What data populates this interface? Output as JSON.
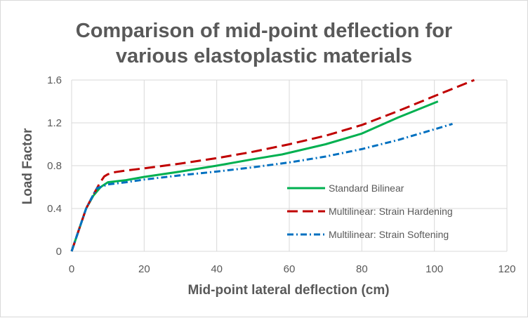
{
  "chart_data": {
    "type": "line",
    "title_lines": [
      "Comparison of mid-point deflection for",
      "various elastoplastic materials"
    ],
    "xlabel": "Mid-point lateral deflection (cm)",
    "ylabel": "Load Factor",
    "xlim": [
      0,
      120
    ],
    "ylim": [
      0,
      1.6
    ],
    "x_ticks": [
      0,
      20,
      40,
      60,
      80,
      100,
      120
    ],
    "y_ticks": [
      0,
      0.4,
      0.8,
      1.2,
      1.6
    ],
    "x_tick_labels": [
      "0",
      "20",
      "40",
      "60",
      "80",
      "100",
      "120"
    ],
    "y_tick_labels": [
      "0",
      "0.4",
      "0.8",
      "1.2",
      "1.6"
    ],
    "grid": true,
    "legend_position": "right-middle",
    "series": [
      {
        "name": "Standard Bilinear",
        "color": "#00b050",
        "dash": "solid",
        "x": [
          0,
          2,
          4,
          6,
          8,
          10,
          15,
          20,
          30,
          40,
          50,
          58,
          70,
          80,
          90,
          101
        ],
        "y": [
          0,
          0.2,
          0.4,
          0.52,
          0.6,
          0.645,
          0.665,
          0.695,
          0.745,
          0.8,
          0.86,
          0.905,
          1.0,
          1.1,
          1.25,
          1.4
        ]
      },
      {
        "name": "Multilinear: Strain Hardening",
        "color": "#c00000",
        "dash": "dash",
        "x": [
          0,
          2,
          4,
          6,
          8,
          9,
          10,
          12,
          15,
          20,
          30,
          40,
          50,
          60,
          70,
          80,
          90,
          100,
          111
        ],
        "y": [
          0,
          0.2,
          0.4,
          0.53,
          0.65,
          0.7,
          0.72,
          0.74,
          0.755,
          0.775,
          0.82,
          0.87,
          0.93,
          1.0,
          1.08,
          1.18,
          1.31,
          1.45,
          1.6
        ]
      },
      {
        "name": "Multilinear: Strain Softening",
        "color": "#0070c0",
        "dash": "dashdot",
        "x": [
          0,
          2,
          4,
          6,
          7,
          8,
          10,
          15,
          20,
          30,
          40,
          50,
          60,
          70,
          80,
          90,
          100,
          105
        ],
        "y": [
          0,
          0.2,
          0.4,
          0.53,
          0.59,
          0.6,
          0.625,
          0.645,
          0.67,
          0.71,
          0.745,
          0.785,
          0.83,
          0.885,
          0.955,
          1.04,
          1.14,
          1.19
        ]
      }
    ]
  }
}
